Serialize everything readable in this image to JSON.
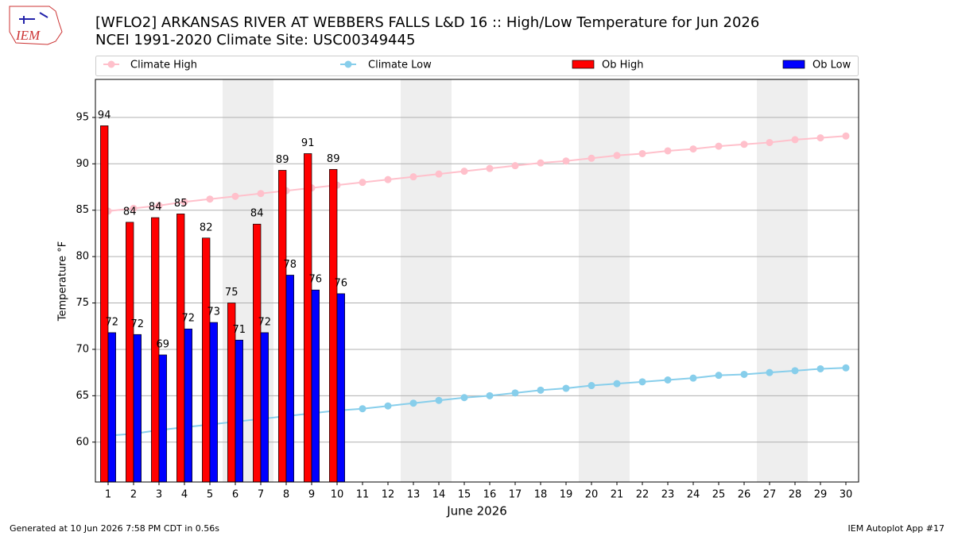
{
  "chart_data": {
    "type": "bar",
    "title": "[WFLO2] ARKANSAS RIVER  AT WEBBERS FALLS L&D 16 :: High/Low Temperature for Jun 2026",
    "subtitle": "NCEI 1991-2020 Climate Site: USC00349445",
    "xlabel": "June 2026",
    "ylabel": "Temperature °F",
    "footer_left": "Generated at 10 Jun 2026 7:58 PM CDT in 0.56s",
    "footer_right": "IEM Autoplot App #17",
    "logo_text": "IEM",
    "x": [
      1,
      2,
      3,
      4,
      5,
      6,
      7,
      8,
      9,
      10,
      11,
      12,
      13,
      14,
      15,
      16,
      17,
      18,
      19,
      20,
      21,
      22,
      23,
      24,
      25,
      26,
      27,
      28,
      29,
      30
    ],
    "xlim": [
      0.5,
      30.5
    ],
    "xticks": [
      1,
      2,
      3,
      4,
      5,
      6,
      7,
      8,
      9,
      10,
      11,
      12,
      13,
      14,
      15,
      16,
      17,
      18,
      19,
      20,
      21,
      22,
      23,
      24,
      25,
      26,
      27,
      28,
      29,
      30
    ],
    "ylim": [
      55.7,
      99.1
    ],
    "yticks": [
      60,
      65,
      70,
      75,
      80,
      85,
      90,
      95
    ],
    "grid": true,
    "shaded_ranges": [
      [
        5.5,
        7.5
      ],
      [
        12.5,
        14.5
      ],
      [
        19.5,
        21.5
      ],
      [
        26.5,
        28.5
      ]
    ],
    "series": [
      {
        "name": "Climate High",
        "kind": "line",
        "color": "#ffc0cb",
        "values": [
          84.9,
          85.2,
          85.5,
          85.9,
          86.2,
          86.5,
          86.8,
          87.1,
          87.4,
          87.7,
          88.0,
          88.3,
          88.6,
          88.9,
          89.2,
          89.5,
          89.8,
          90.1,
          90.3,
          90.6,
          90.9,
          91.1,
          91.4,
          91.6,
          91.9,
          92.1,
          92.3,
          92.6,
          92.8,
          93.0
        ]
      },
      {
        "name": "Climate Low",
        "kind": "line",
        "color": "#87ceeb",
        "values": [
          60.7,
          60.9,
          61.3,
          61.6,
          61.9,
          62.2,
          62.5,
          62.8,
          63.1,
          63.4,
          63.6,
          63.9,
          64.2,
          64.5,
          64.8,
          65.0,
          65.3,
          65.6,
          65.8,
          66.1,
          66.3,
          66.5,
          66.7,
          66.9,
          67.2,
          67.3,
          67.5,
          67.7,
          67.9,
          68.0
        ]
      },
      {
        "name": "Ob High",
        "kind": "bar",
        "color": "#ff0000",
        "values": [
          94.1,
          83.7,
          84.2,
          84.6,
          82.0,
          75.0,
          83.5,
          89.3,
          91.1,
          89.4,
          null,
          null,
          null,
          null,
          null,
          null,
          null,
          null,
          null,
          null,
          null,
          null,
          null,
          null,
          null,
          null,
          null,
          null,
          null,
          null
        ],
        "value_labels": [
          "94",
          "84",
          "84",
          "85",
          "82",
          "75",
          "84",
          "89",
          "91",
          "89",
          null,
          null,
          null,
          null,
          null,
          null,
          null,
          null,
          null,
          null,
          null,
          null,
          null,
          null,
          null,
          null,
          null,
          null,
          null,
          null
        ]
      },
      {
        "name": "Ob Low",
        "kind": "bar",
        "color": "#0000ff",
        "values": [
          71.8,
          71.6,
          69.4,
          72.2,
          72.9,
          71.0,
          71.8,
          78.0,
          76.4,
          76.0,
          null,
          null,
          null,
          null,
          null,
          null,
          null,
          null,
          null,
          null,
          null,
          null,
          null,
          null,
          null,
          null,
          null,
          null,
          null,
          null
        ],
        "value_labels": [
          "72",
          "72",
          "69",
          "72",
          "73",
          "71",
          "72",
          "78",
          "76",
          "76",
          null,
          null,
          null,
          null,
          null,
          null,
          null,
          null,
          null,
          null,
          null,
          null,
          null,
          null,
          null,
          null,
          null,
          null,
          null,
          null
        ]
      }
    ]
  }
}
